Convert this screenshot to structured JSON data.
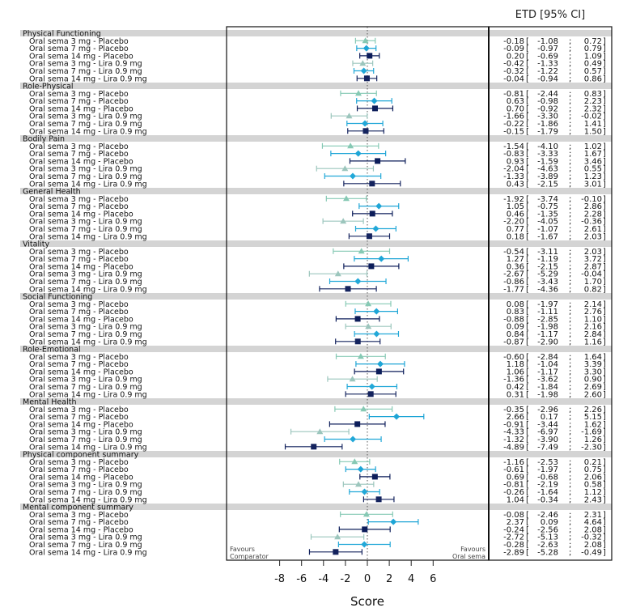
{
  "chart_data": {
    "type": "forest",
    "ci_header": "ETD [95% CI]",
    "xlabel": "Score",
    "xlim": [
      -8.5,
      9.5
    ],
    "xticks": [
      -8,
      -6,
      -4,
      -2,
      0,
      2,
      4,
      6
    ],
    "reference_line": 0,
    "left_note": [
      "Favours",
      "Comparator"
    ],
    "right_note": [
      "Favours",
      "Oral sema"
    ],
    "comparisons": [
      {
        "label": "Oral sema 3 mg - Placebo",
        "marker": "triangle",
        "color": "#86c9b4"
      },
      {
        "label": "Oral sema 7 mg - Placebo",
        "marker": "diamond",
        "color": "#1ea5d6"
      },
      {
        "label": "Oral sema 14 mg - Placebo",
        "marker": "square",
        "color": "#0c1d5a"
      },
      {
        "label": "Oral sema 3 mg - Lira 0.9 mg",
        "marker": "triangle",
        "color": "#9cc6bd"
      },
      {
        "label": "Oral sema 7 mg - Lira 0.9 mg",
        "marker": "diamond",
        "color": "#22a8d8"
      },
      {
        "label": "Oral sema 14 mg - Lira 0.9 mg",
        "marker": "square",
        "color": "#14235e"
      }
    ],
    "groups": [
      {
        "name": "Physical Functioning",
        "rows": [
          {
            "etd": -0.18,
            "lo": -1.08,
            "hi": 0.72
          },
          {
            "etd": -0.09,
            "lo": -0.97,
            "hi": 0.79
          },
          {
            "etd": 0.2,
            "lo": -0.69,
            "hi": 1.09
          },
          {
            "etd": -0.42,
            "lo": -1.33,
            "hi": 0.49
          },
          {
            "etd": -0.32,
            "lo": -1.22,
            "hi": 0.57
          },
          {
            "etd": -0.04,
            "lo": -0.94,
            "hi": 0.86
          }
        ]
      },
      {
        "name": "Role-Physical",
        "rows": [
          {
            "etd": -0.81,
            "lo": -2.44,
            "hi": 0.83
          },
          {
            "etd": 0.63,
            "lo": -0.98,
            "hi": 2.23
          },
          {
            "etd": 0.7,
            "lo": -0.92,
            "hi": 2.32
          },
          {
            "etd": -1.66,
            "lo": -3.3,
            "hi": -0.02
          },
          {
            "etd": -0.22,
            "lo": -1.86,
            "hi": 1.41
          },
          {
            "etd": -0.15,
            "lo": -1.79,
            "hi": 1.5
          }
        ]
      },
      {
        "name": "Bodily Pain",
        "rows": [
          {
            "etd": -1.54,
            "lo": -4.1,
            "hi": 1.02
          },
          {
            "etd": -0.83,
            "lo": -3.33,
            "hi": 1.67
          },
          {
            "etd": 0.93,
            "lo": -1.59,
            "hi": 3.46
          },
          {
            "etd": -2.04,
            "lo": -4.63,
            "hi": 0.55
          },
          {
            "etd": -1.33,
            "lo": -3.89,
            "hi": 1.23
          },
          {
            "etd": 0.43,
            "lo": -2.15,
            "hi": 3.01
          }
        ]
      },
      {
        "name": "General Health",
        "rows": [
          {
            "etd": -1.92,
            "lo": -3.74,
            "hi": -0.1
          },
          {
            "etd": 1.05,
            "lo": -0.75,
            "hi": 2.86
          },
          {
            "etd": 0.46,
            "lo": -1.35,
            "hi": 2.28
          },
          {
            "etd": -2.2,
            "lo": -4.05,
            "hi": -0.36
          },
          {
            "etd": 0.77,
            "lo": -1.07,
            "hi": 2.61
          },
          {
            "etd": 0.18,
            "lo": -1.67,
            "hi": 2.03
          }
        ]
      },
      {
        "name": "Vitality",
        "rows": [
          {
            "etd": -0.54,
            "lo": -3.11,
            "hi": 2.03
          },
          {
            "etd": 1.27,
            "lo": -1.19,
            "hi": 3.72
          },
          {
            "etd": 0.36,
            "lo": -2.15,
            "hi": 2.87
          },
          {
            "etd": -2.67,
            "lo": -5.29,
            "hi": -0.04
          },
          {
            "etd": -0.86,
            "lo": -3.43,
            "hi": 1.7
          },
          {
            "etd": -1.77,
            "lo": -4.36,
            "hi": 0.82
          }
        ]
      },
      {
        "name": "Social Functioning",
        "rows": [
          {
            "etd": 0.08,
            "lo": -1.97,
            "hi": 2.14
          },
          {
            "etd": 0.83,
            "lo": -1.11,
            "hi": 2.76
          },
          {
            "etd": -0.88,
            "lo": -2.85,
            "hi": 1.1
          },
          {
            "etd": 0.09,
            "lo": -1.98,
            "hi": 2.16
          },
          {
            "etd": 0.84,
            "lo": -1.17,
            "hi": 2.84
          },
          {
            "etd": -0.87,
            "lo": -2.9,
            "hi": 1.16
          }
        ]
      },
      {
        "name": "Role-Emotional",
        "rows": [
          {
            "etd": -0.6,
            "lo": -2.84,
            "hi": 1.64
          },
          {
            "etd": 1.18,
            "lo": -1.04,
            "hi": 3.39
          },
          {
            "etd": 1.06,
            "lo": -1.17,
            "hi": 3.3
          },
          {
            "etd": -1.36,
            "lo": -3.62,
            "hi": 0.9
          },
          {
            "etd": 0.42,
            "lo": -1.84,
            "hi": 2.69
          },
          {
            "etd": 0.31,
            "lo": -1.98,
            "hi": 2.6
          }
        ]
      },
      {
        "name": "Mental Health",
        "rows": [
          {
            "etd": -0.35,
            "lo": -2.96,
            "hi": 2.26
          },
          {
            "etd": 2.66,
            "lo": 0.17,
            "hi": 5.15
          },
          {
            "etd": -0.91,
            "lo": -3.44,
            "hi": 1.62
          },
          {
            "etd": -4.33,
            "lo": -6.97,
            "hi": -1.69
          },
          {
            "etd": -1.32,
            "lo": -3.9,
            "hi": 1.26
          },
          {
            "etd": -4.89,
            "lo": -7.49,
            "hi": -2.3
          }
        ]
      },
      {
        "name": "Physical component summary",
        "rows": [
          {
            "etd": -1.16,
            "lo": -2.53,
            "hi": 0.21
          },
          {
            "etd": -0.61,
            "lo": -1.97,
            "hi": 0.75
          },
          {
            "etd": 0.69,
            "lo": -0.68,
            "hi": 2.06
          },
          {
            "etd": -0.81,
            "lo": -2.19,
            "hi": 0.58
          },
          {
            "etd": -0.26,
            "lo": -1.64,
            "hi": 1.12
          },
          {
            "etd": 1.04,
            "lo": -0.34,
            "hi": 2.43
          }
        ]
      },
      {
        "name": "Mental component summary",
        "rows": [
          {
            "etd": -0.08,
            "lo": -2.46,
            "hi": 2.31
          },
          {
            "etd": 2.37,
            "lo": 0.09,
            "hi": 4.64
          },
          {
            "etd": -0.24,
            "lo": -2.56,
            "hi": 2.08
          },
          {
            "etd": -2.72,
            "lo": -5.13,
            "hi": -0.32
          },
          {
            "etd": -0.28,
            "lo": -2.63,
            "hi": 2.08
          },
          {
            "etd": -2.89,
            "lo": -5.28,
            "hi": -0.49
          }
        ]
      }
    ]
  }
}
